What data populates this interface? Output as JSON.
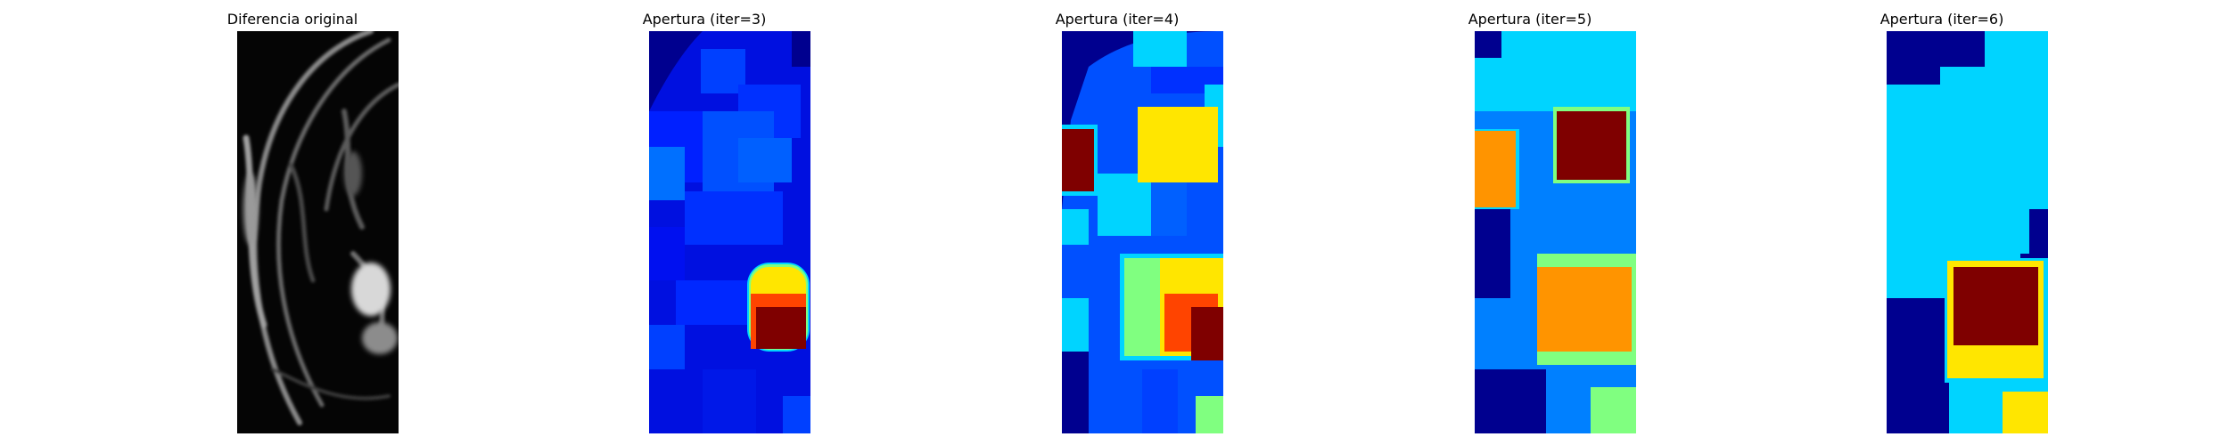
{
  "figure": {
    "panels": [
      {
        "title": "Diferencia original",
        "image": "grayscale-difference-image"
      },
      {
        "title": "Apertura (iter=3)",
        "image": "jet-colormap-opening-image"
      },
      {
        "title": "Apertura (iter=4)",
        "image": "jet-colormap-opening-image"
      },
      {
        "title": "Apertura (iter=5)",
        "image": "jet-colormap-opening-image"
      },
      {
        "title": "Apertura (iter=6)",
        "image": "jet-colormap-opening-image"
      }
    ],
    "colors": {
      "jet_dark_blue": "#00008f",
      "jet_blue": "#0020ff",
      "jet_mid_blue": "#0080ff",
      "jet_cyan": "#00d4ff",
      "jet_green": "#80ff80",
      "jet_yellow": "#ffe600",
      "jet_orange": "#ff9400",
      "jet_red": "#ff4400",
      "jet_dark_red": "#7f0000"
    }
  }
}
